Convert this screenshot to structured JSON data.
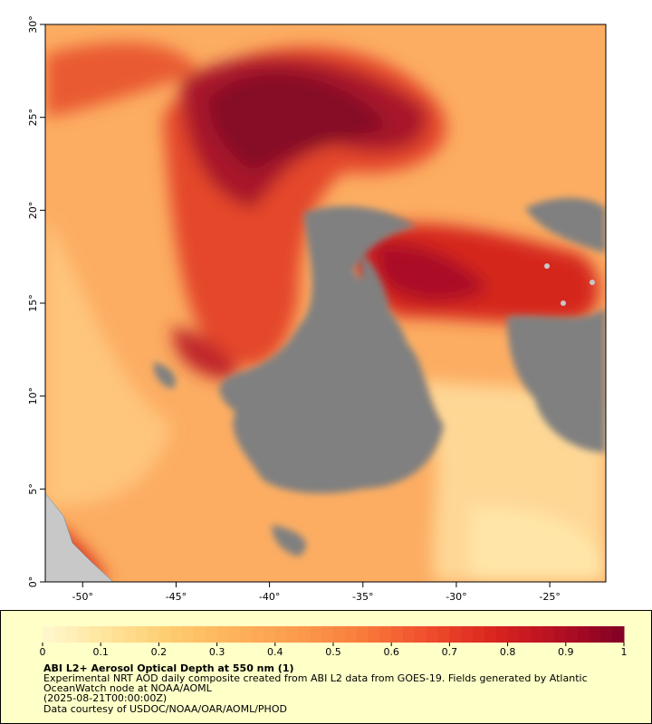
{
  "map": {
    "xlim": [
      -52,
      -22
    ],
    "ylim": [
      0,
      30
    ],
    "xticks": [
      {
        "value": -50,
        "label": "-50°"
      },
      {
        "value": -45,
        "label": "-45°"
      },
      {
        "value": -40,
        "label": "-40°"
      },
      {
        "value": -35,
        "label": "-35°"
      },
      {
        "value": -30,
        "label": "-30°"
      },
      {
        "value": -25,
        "label": "-25°"
      }
    ],
    "yticks": [
      {
        "value": 0,
        "label": "0°"
      },
      {
        "value": 5,
        "label": "5°"
      },
      {
        "value": 10,
        "label": "10°"
      },
      {
        "value": 15,
        "label": "15°"
      },
      {
        "value": 20,
        "label": "20°"
      },
      {
        "value": 25,
        "label": "25°"
      },
      {
        "value": 30,
        "label": "30°"
      }
    ]
  },
  "colorbar": {
    "range": [
      0,
      1
    ],
    "ticks": [
      0,
      0.1,
      0.2,
      0.3,
      0.4,
      0.5,
      0.6,
      0.7,
      0.8,
      0.9,
      1
    ],
    "colors": [
      "#fff8d0",
      "#ffe49a",
      "#fecb6e",
      "#fdb15a",
      "#fc9a4c",
      "#f9793a",
      "#ef4c2c",
      "#d9241f",
      "#b40f22",
      "#800026"
    ]
  },
  "caption": {
    "title": "ABI L2+ Aerosol Optical Depth at 550 nm (1)",
    "lines": [
      "Experimental NRT AOD daily composite created from ABI L2 data from GOES-19. Fields generated by Atlantic",
      "OceanWatch node at NOAA/AOML",
      "(2025-08-21T00:00:00Z)",
      "Data courtesy of USDOC/NOAA/OAR/AOML/PHOD"
    ]
  }
}
